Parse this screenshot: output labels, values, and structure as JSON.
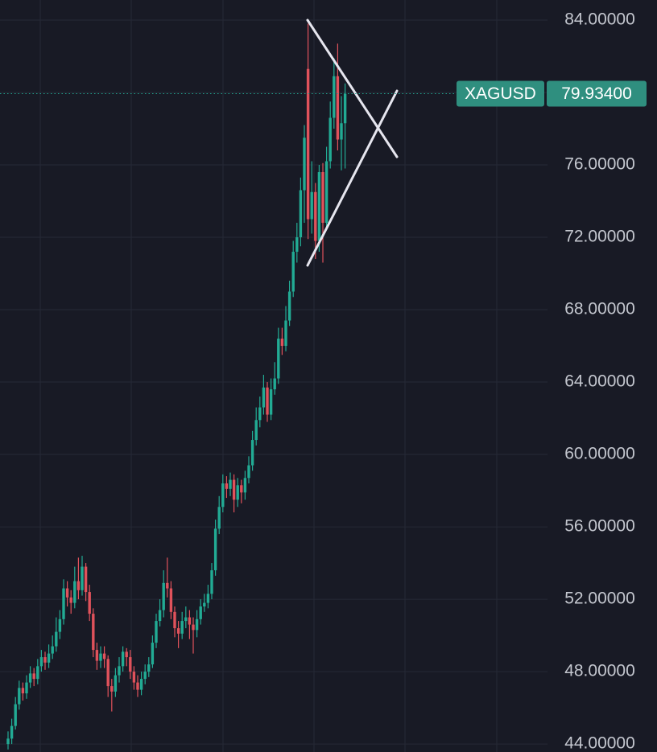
{
  "chart_data": {
    "type": "candlestick",
    "symbol": "XAGUSD",
    "last_price": {
      "value": 79.934,
      "label": "79.93400"
    },
    "up_color": "#22ab94",
    "down_color": "#e0525b",
    "ylim": [
      43.56,
      85.11
    ],
    "yticks": [
      {
        "value": 44,
        "label": "44.00000"
      },
      {
        "value": 48,
        "label": "48.00000"
      },
      {
        "value": 52,
        "label": "52.00000"
      },
      {
        "value": 56,
        "label": "56.00000"
      },
      {
        "value": 60,
        "label": "60.00000"
      },
      {
        "value": 64,
        "label": "64.00000"
      },
      {
        "value": 68,
        "label": "68.00000"
      },
      {
        "value": 72,
        "label": "72.00000"
      },
      {
        "value": 76,
        "label": "76.00000"
      },
      {
        "value": 80,
        "label": "80.00000"
      },
      {
        "value": 84,
        "label": "84.00000"
      }
    ],
    "grid": true,
    "open": [
      44.0,
      44.3,
      45.0,
      46.2,
      47.1,
      46.8,
      47.4,
      47.9,
      47.6,
      48.3,
      48.8,
      48.5,
      49.0,
      49.4,
      50.2,
      50.9,
      52.6,
      52.1,
      51.8,
      53.0,
      52.5,
      53.8,
      52.4,
      51.2,
      49.2,
      48.6,
      49.0,
      48.7,
      47.2,
      46.9,
      47.8,
      48.3,
      49.1,
      48.8,
      48.0,
      47.4,
      47.0,
      47.6,
      48.0,
      48.4,
      49.6,
      50.8,
      51.4,
      52.9,
      52.6,
      51.3,
      50.4,
      50.1,
      50.8,
      51.0,
      50.6,
      50.3,
      50.9,
      51.6,
      51.8,
      52.3,
      53.6,
      55.9,
      57.1,
      58.4,
      58.1,
      58.6,
      57.5,
      58.3,
      57.9,
      58.7,
      59.4,
      60.8,
      61.9,
      62.6,
      63.7,
      62.2,
      63.6,
      64.2,
      66.4,
      66.0,
      67.4,
      69.0,
      71.2,
      72.0,
      74.6,
      81.3,
      73.0,
      74.5,
      71.8,
      75.6,
      72.8,
      76.2,
      78.6,
      80.9,
      77.4,
      78.3
    ],
    "high": [
      44.7,
      45.4,
      46.6,
      47.5,
      47.4,
      47.8,
      48.3,
      48.2,
      48.7,
      49.2,
      49.1,
      49.5,
      50.0,
      51.0,
      51.4,
      53.1,
      53.0,
      52.5,
      53.8,
      54.3,
      54.4,
      54.0,
      52.8,
      51.5,
      49.6,
      49.4,
      49.4,
      48.9,
      47.6,
      48.2,
      48.8,
      49.4,
      49.3,
      49.2,
      48.3,
      47.8,
      48.0,
      48.4,
      48.8,
      50.0,
      51.2,
      52.0,
      53.6,
      54.3,
      53.0,
      51.6,
      50.8,
      51.3,
      51.6,
      51.4,
      51.0,
      51.4,
      52.0,
      52.3,
      52.8,
      54.0,
      56.4,
      57.7,
      58.9,
      58.8,
      59.0,
      58.9,
      58.7,
      58.6,
      59.1,
      59.9,
      61.3,
      62.6,
      63.2,
      64.4,
      64.0,
      64.2,
      65.1,
      67.0,
      67.0,
      68.2,
      69.6,
      71.8,
      72.8,
      75.3,
      78.2,
      83.8,
      76.2,
      75.0,
      76.0,
      76.1,
      77.0,
      79.5,
      81.9,
      82.7,
      79.8,
      80.5
    ],
    "low": [
      43.7,
      44.0,
      44.8,
      45.9,
      46.4,
      46.5,
      47.1,
      47.2,
      47.3,
      48.0,
      48.1,
      48.2,
      48.7,
      49.1,
      49.8,
      50.6,
      51.6,
      51.2,
      51.5,
      52.0,
      52.2,
      51.9,
      50.8,
      48.8,
      48.1,
      48.2,
      48.2,
      46.6,
      45.8,
      46.6,
      47.4,
      48.0,
      48.3,
      47.6,
      47.0,
      46.6,
      46.7,
      47.3,
      47.7,
      48.2,
      49.3,
      50.5,
      51.0,
      52.1,
      50.9,
      49.9,
      49.3,
      49.8,
      50.4,
      49.8,
      49.0,
      49.9,
      50.6,
      51.3,
      51.5,
      52.0,
      53.3,
      55.6,
      56.8,
      57.6,
      57.7,
      56.8,
      57.1,
      57.3,
      57.5,
      58.4,
      59.1,
      60.5,
      61.5,
      62.2,
      61.8,
      61.9,
      63.3,
      63.9,
      65.5,
      65.7,
      67.1,
      68.7,
      70.6,
      71.5,
      72.8,
      71.9,
      72.2,
      70.8,
      71.2,
      70.6,
      72.4,
      75.8,
      78.0,
      76.8,
      75.7,
      75.8
    ],
    "close": [
      44.3,
      45.0,
      46.2,
      47.1,
      46.8,
      47.4,
      47.9,
      47.6,
      48.3,
      48.8,
      48.5,
      49.0,
      49.4,
      50.2,
      50.9,
      52.6,
      52.1,
      51.8,
      53.0,
      52.5,
      53.8,
      52.4,
      51.2,
      49.2,
      48.6,
      49.0,
      48.7,
      47.2,
      46.9,
      47.8,
      48.3,
      49.1,
      48.8,
      48.0,
      47.4,
      47.0,
      47.6,
      48.0,
      48.4,
      49.6,
      50.8,
      51.4,
      52.9,
      52.6,
      51.3,
      50.4,
      50.1,
      50.8,
      51.0,
      50.6,
      50.3,
      50.9,
      51.6,
      51.8,
      52.3,
      53.6,
      55.9,
      57.1,
      58.4,
      58.1,
      58.6,
      57.5,
      58.3,
      57.9,
      58.7,
      59.4,
      60.8,
      61.9,
      62.6,
      63.7,
      62.2,
      63.6,
      64.2,
      66.4,
      66.0,
      67.4,
      69.0,
      71.2,
      72.0,
      74.6,
      77.5,
      73.0,
      74.5,
      71.8,
      75.6,
      72.8,
      76.2,
      78.6,
      80.9,
      77.4,
      78.3,
      79.93
    ]
  }
}
